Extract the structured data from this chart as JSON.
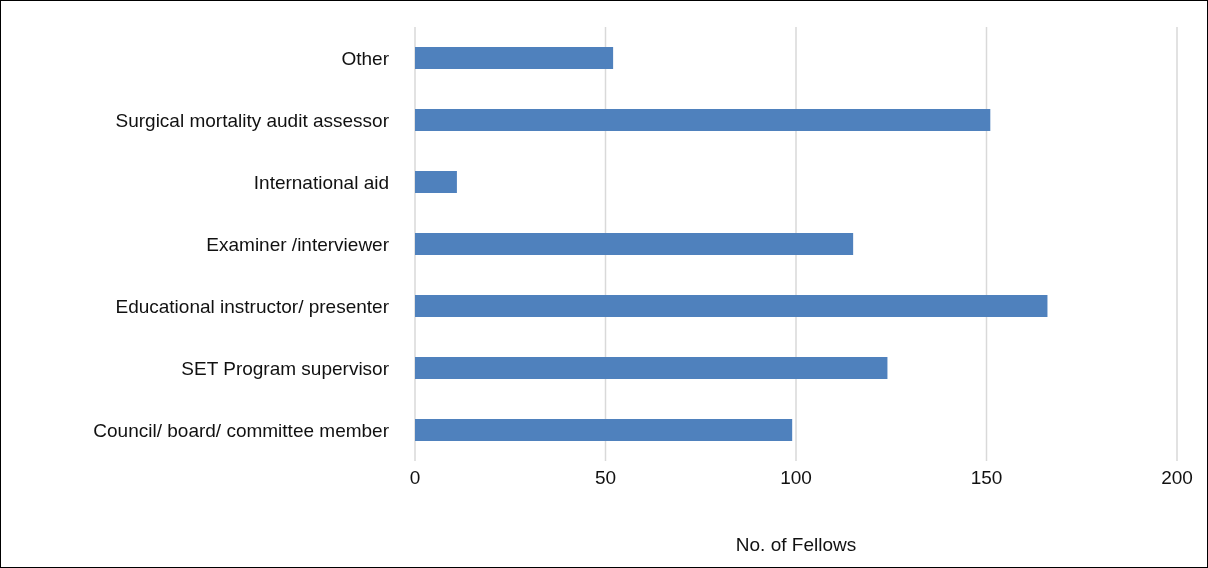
{
  "chart_data": {
    "type": "bar",
    "orientation": "horizontal",
    "xlabel": "No. of Fellows",
    "categories": [
      "Other",
      "Surgical mortality audit assessor",
      "International aid",
      "Examiner /interviewer",
      "Educational instructor/ presenter",
      "SET Program supervisor",
      "Council/ board/ committee member"
    ],
    "values": [
      52,
      151,
      11,
      115,
      166,
      124,
      99
    ],
    "color": "#4f81bd",
    "xlim": [
      0,
      200
    ],
    "xticks": [
      0,
      50,
      100,
      150,
      200
    ],
    "grid": "x",
    "legend": false
  }
}
